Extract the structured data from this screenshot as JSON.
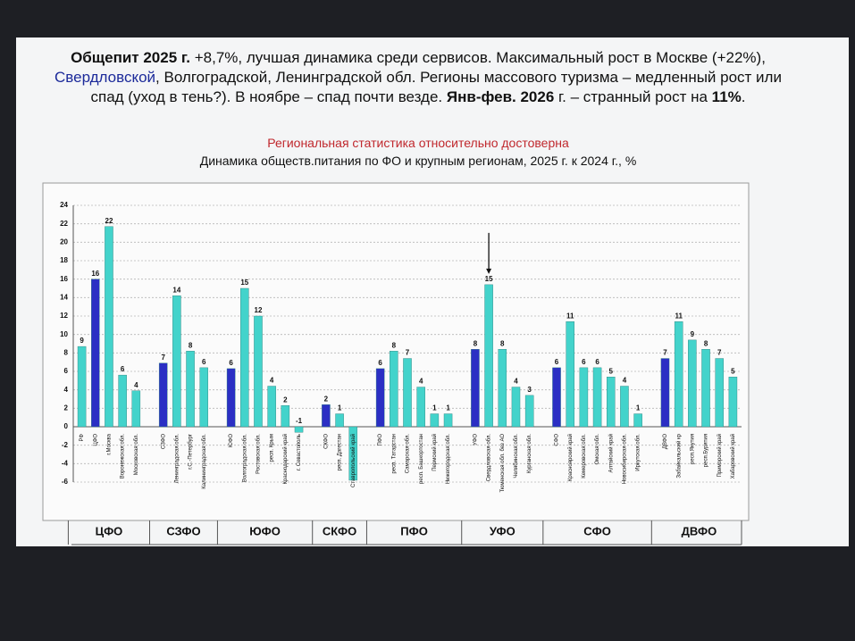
{
  "headline": [
    {
      "text": "Общепит 2025 г.",
      "bold": true
    },
    {
      "text": " +8,7%, лучшая динамика среди сервисов. Максимальный рост в Москве (+22%), "
    },
    {
      "text": "Свердловской",
      "color": "#1c2a9a"
    },
    {
      "text": ", Волгоградской, Ленинградской обл. Регионы массового туризма – медленный рост или спад (уход в тень?). В ноябре – спад почти везде. "
    },
    {
      "text": "Янв-фев. 2026",
      "bold": true
    },
    {
      "text": " г. – странный рост на "
    },
    {
      "text": "11%",
      "bold": true
    },
    {
      "text": "."
    }
  ],
  "chart_data": {
    "type": "bar",
    "subtitle": "Региональная статистика относительно достоверна",
    "title": "Динамика обществ.питания по ФО и крупным регионам, 2025 г. к 2024 г., %",
    "ylim": [
      -6,
      24
    ],
    "yticks": [
      -6,
      -4,
      -2,
      0,
      2,
      4,
      6,
      8,
      10,
      12,
      14,
      16,
      18,
      20,
      22,
      24
    ],
    "grid": true,
    "district_color": "#2b2fc4",
    "region_color": "#43d3cb",
    "groups": [
      {
        "name": "ЦФО",
        "categories": [
          "РФ",
          "ЦФО",
          "г.Москва",
          "Воронежская обл.",
          "Московская обл."
        ],
        "values": [
          8.7,
          16,
          21.7,
          5.6,
          3.9
        ],
        "value_labels": [
          "9",
          "16",
          "22",
          "6",
          "4"
        ],
        "district": [
          false,
          true,
          false,
          false,
          false
        ]
      },
      {
        "name": "СЗФО",
        "categories": [
          "СЗФО",
          "Ленинградская обл.",
          "г.С.-Петербург",
          "Калининградская обл."
        ],
        "values": [
          6.9,
          14.2,
          8.2,
          6.4
        ],
        "value_labels": [
          "7",
          "14",
          "8",
          "6"
        ],
        "district": [
          true,
          false,
          false,
          false
        ]
      },
      {
        "name": "ЮФО",
        "categories": [
          "ЮФО",
          "Волгоградская обл.",
          "Ростовская обл.",
          "респ. Крым",
          "Краснодарский край",
          "г. Севастополь"
        ],
        "values": [
          6.3,
          15,
          12,
          4.4,
          2.3,
          -0.6
        ],
        "value_labels": [
          "6",
          "15",
          "12",
          "4",
          "2",
          "-1"
        ],
        "district": [
          true,
          false,
          false,
          false,
          false,
          false
        ]
      },
      {
        "name": "СКФО",
        "categories": [
          "СКФО",
          "респ. Дагестан",
          "Ставропольский край"
        ],
        "values": [
          2.4,
          1.4,
          -5.8
        ],
        "value_labels": [
          "2",
          "1",
          null
        ],
        "district": [
          true,
          false,
          false
        ]
      },
      {
        "name": "ПФО",
        "categories": [
          "ПФО",
          "респ. Татарстан",
          "Самарская обл.",
          "респ. Башкортостан",
          "Пермский край",
          "Нижегородская обл."
        ],
        "values": [
          6.3,
          8.2,
          7.4,
          4.3,
          1.4,
          1.4
        ],
        "value_labels": [
          "6",
          "8",
          "7",
          "4",
          "1",
          "1"
        ],
        "district": [
          true,
          false,
          false,
          false,
          false,
          false
        ]
      },
      {
        "name": "УФО",
        "categories": [
          "УФО",
          "Свердловская обл.",
          "Тюменская обл. без АО",
          "Челябинская обл.",
          "Курганская обл."
        ],
        "values": [
          8.4,
          15.4,
          8.4,
          4.3,
          3.4
        ],
        "value_labels": [
          "8",
          "15",
          "8",
          "4",
          "3"
        ],
        "district": [
          true,
          false,
          false,
          false,
          false
        ]
      },
      {
        "name": "СФО",
        "categories": [
          "СФО",
          "Красноярский край",
          "Кемеровская обл.",
          "Омская обл.",
          "Алтайский край",
          "Новосибирская обл.",
          "Иркутская обл."
        ],
        "values": [
          6.4,
          11.4,
          6.4,
          6.4,
          5.4,
          4.4,
          1.4
        ],
        "value_labels": [
          "6",
          "11",
          "6",
          "6",
          "5",
          "4",
          "1"
        ],
        "district": [
          true,
          false,
          false,
          false,
          false,
          false,
          false
        ]
      },
      {
        "name": "ДВФО",
        "categories": [
          "ДВФО",
          "Забайкальский кр",
          "респ.Якутия",
          "респ.Бурятия",
          "Приморский край",
          "Хабаровский край"
        ],
        "values": [
          7.4,
          11.4,
          9.4,
          8.4,
          7.4,
          5.4
        ],
        "value_labels": [
          "7",
          "11",
          "9",
          "8",
          "7",
          "5"
        ],
        "district": [
          true,
          false,
          false,
          false,
          false,
          false
        ]
      }
    ]
  }
}
